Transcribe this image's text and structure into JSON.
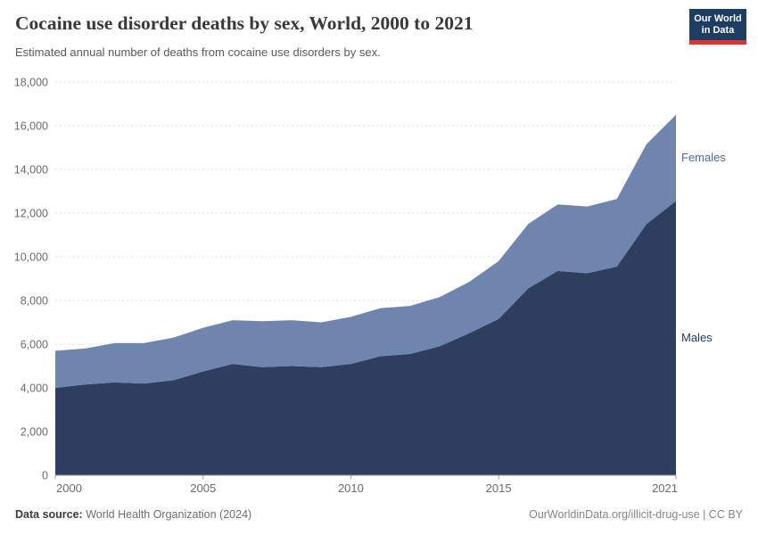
{
  "header": {
    "title": "Cocaine use disorder deaths by sex, World, 2000 to 2021",
    "subtitle": "Estimated annual number of deaths from cocaine use disorders by sex.",
    "logo": {
      "line1": "Our World",
      "line2": "in Data",
      "bg_color": "#1d3d63",
      "accent_color": "#e0342b"
    }
  },
  "chart_data": {
    "type": "area",
    "stacked": true,
    "title": "Cocaine use disorder deaths by sex, World, 2000 to 2021",
    "xlabel": "",
    "ylabel": "",
    "x": [
      2000,
      2001,
      2002,
      2003,
      2004,
      2005,
      2006,
      2007,
      2008,
      2009,
      2010,
      2011,
      2012,
      2013,
      2014,
      2015,
      2016,
      2017,
      2018,
      2019,
      2020,
      2021
    ],
    "series": [
      {
        "name": "Males",
        "color": "#2d3e5f",
        "label_color": "#1f3a60",
        "values": [
          4000,
          4150,
          4250,
          4200,
          4350,
          4750,
          5100,
          4950,
          5000,
          4950,
          5100,
          5450,
          5550,
          5900,
          6500,
          7150,
          8550,
          9350,
          9250,
          9550,
          11500,
          12550
        ]
      },
      {
        "name": "Females",
        "color": "#6f85ad",
        "label_color": "#4c6a9b",
        "values": [
          1700,
          1650,
          1800,
          1850,
          1950,
          2000,
          2000,
          2100,
          2100,
          2050,
          2150,
          2200,
          2200,
          2250,
          2350,
          2650,
          2950,
          3050,
          3050,
          3100,
          3650,
          3950
        ]
      }
    ],
    "ylim": [
      0,
      18000
    ],
    "yticks": [
      0,
      2000,
      4000,
      6000,
      8000,
      10000,
      12000,
      14000,
      16000,
      18000
    ],
    "ytick_labels": [
      "0",
      "2,000",
      "4,000",
      "6,000",
      "8,000",
      "10,000",
      "12,000",
      "14,000",
      "16,000",
      "18,000"
    ],
    "xticks": [
      2000,
      2005,
      2010,
      2015,
      2021
    ],
    "xtick_labels": [
      "2000",
      "2005",
      "2010",
      "2015",
      "2021"
    ],
    "grid": "horizontal-dashed",
    "legend_position": "right-edge-labels",
    "grid_color": "#dcdcdc",
    "axis_color": "#9a9a9a"
  },
  "footer": {
    "source_label": "Data source:",
    "source_text": "World Health Organization (2024)",
    "link_text": "OurWorldinData.org/illicit-drug-use | CC BY"
  }
}
